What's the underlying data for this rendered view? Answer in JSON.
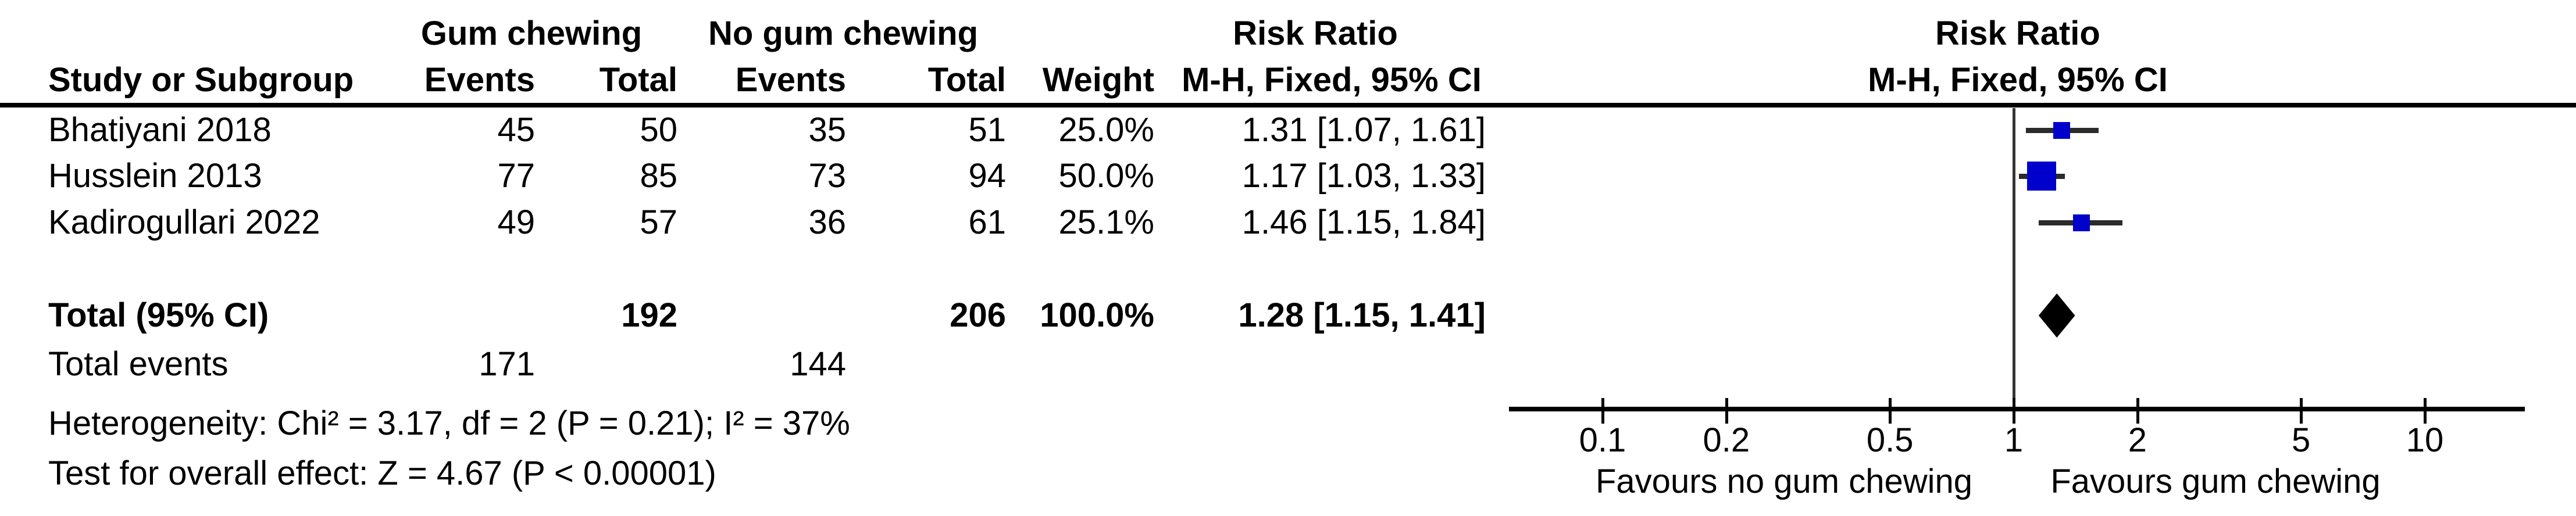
{
  "header": {
    "gum_group": "Gum chewing",
    "no_gum_group": "No gum chewing",
    "risk_ratio": "Risk Ratio",
    "method": "M-H, Fixed, 95% CI",
    "study_col": "Study or Subgroup",
    "events_col": "Events",
    "total_col": "Total",
    "weight_col": "Weight"
  },
  "totals": {
    "total_label": "Total (95% CI)",
    "total_gum": "192",
    "total_no_gum": "206",
    "weight": "100.0%",
    "ci_text": "1.28 [1.15, 1.41]",
    "total_events_label": "Total events",
    "events_gum": "171",
    "events_no_gum": "144"
  },
  "footnotes": {
    "heterogeneity": "Heterogeneity: Chi² = 3.17, df = 2 (P = 0.21); I² = 37%",
    "overall_effect": "Test for overall effect: Z = 4.67 (P < 0.00001)"
  },
  "chart_data": {
    "type": "forest",
    "effect_measure": "Risk Ratio",
    "model": "M-H, Fixed, 95% CI",
    "x_scale": "log10",
    "x_ticks": [
      "0.1",
      "0.2",
      "0.5",
      "1",
      "2",
      "5",
      "10"
    ],
    "x_tick_values": [
      0.1,
      0.2,
      0.5,
      1,
      2,
      5,
      10
    ],
    "xlim": [
      0.06,
      17
    ],
    "favours_left": "Favours no gum chewing",
    "favours_right": "Favours gum chewing",
    "rows": [
      {
        "name": "Bhatiyani 2018",
        "events_gum": "45",
        "total_gum": "50",
        "events_no_gum": "35",
        "total_no_gum": "51",
        "weight": "25.0%",
        "ci_text": "1.31 [1.07, 1.61]",
        "rr": 1.31,
        "ci_low": 1.07,
        "ci_high": 1.61,
        "weight_pct": 25.0
      },
      {
        "name": "Husslein 2013",
        "events_gum": "77",
        "total_gum": "85",
        "events_no_gum": "73",
        "total_no_gum": "94",
        "weight": "50.0%",
        "ci_text": "1.17 [1.03, 1.33]",
        "rr": 1.17,
        "ci_low": 1.03,
        "ci_high": 1.33,
        "weight_pct": 50.0
      },
      {
        "name": "Kadirogullari 2022",
        "events_gum": "49",
        "total_gum": "57",
        "events_no_gum": "36",
        "total_no_gum": "61",
        "weight": "25.1%",
        "ci_text": "1.46 [1.15, 1.84]",
        "rr": 1.46,
        "ci_low": 1.15,
        "ci_high": 1.84,
        "weight_pct": 25.1
      }
    ],
    "total": {
      "rr": 1.28,
      "ci_low": 1.15,
      "ci_high": 1.41,
      "weight_pct": 100.0
    },
    "colors": {
      "square": "#0000CC",
      "diamond": "#000000",
      "ci_line": "#2b2b2b",
      "axis": "#000000"
    }
  }
}
